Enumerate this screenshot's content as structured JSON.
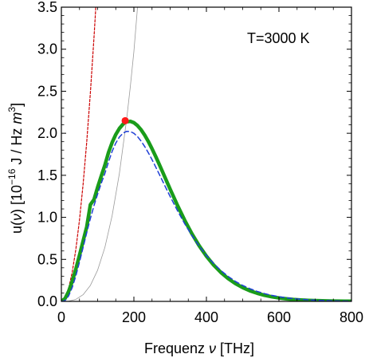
{
  "chart_data": {
    "type": "line",
    "title": "",
    "xlabel_parts": {
      "prefix": "Frequenz ",
      "symbol": "ν",
      "suffix": " [THz]"
    },
    "ylabel_parts": {
      "prefix": "u(",
      "symbol": "ν",
      "middle": ") [10",
      "exponent": "−16",
      "unit": " J / Hz ",
      "m": "m",
      "m_exp": "3",
      "close": "]"
    },
    "annotation": "T=3000 K",
    "xlim": [
      0,
      800
    ],
    "ylim": [
      0,
      3.5
    ],
    "xticks": [
      0,
      200,
      400,
      600,
      800
    ],
    "xtick_labels": [
      "0",
      "200",
      "400",
      "600",
      "800"
    ],
    "yticks": [
      0.0,
      0.5,
      1.0,
      1.5,
      2.0,
      2.5,
      3.0,
      3.5
    ],
    "ytick_labels": [
      "0.0",
      "0.5",
      "1.0",
      "1.5",
      "2.0",
      "2.5",
      "3.0",
      "3.5"
    ],
    "grid": false,
    "legend": "none",
    "series": [
      {
        "style": "solid-thick",
        "color": "#1a9c1a",
        "x": [
          0,
          10,
          20,
          30,
          40,
          50,
          60,
          70,
          80,
          90,
          100,
          110,
          120,
          130,
          140,
          150,
          160,
          170,
          176,
          180,
          190,
          200,
          210,
          220,
          230,
          240,
          250,
          260,
          270,
          280,
          290,
          300,
          320,
          340,
          360,
          380,
          400,
          420,
          440,
          460,
          480,
          500,
          520,
          540,
          560,
          580,
          600,
          620,
          640,
          660,
          680,
          700,
          720,
          740,
          760,
          780,
          800
        ],
        "y": [
          0,
          0.033,
          0.118,
          0.239,
          0.386,
          0.549,
          0.719,
          0.888,
          1.151,
          1.211,
          1.358,
          1.491,
          1.621,
          1.771,
          1.89,
          1.985,
          2.057,
          2.108,
          2.13,
          2.136,
          2.142,
          2.126,
          2.091,
          2.041,
          1.976,
          1.901,
          1.816,
          1.725,
          1.63,
          1.532,
          1.433,
          1.335,
          1.144,
          0.966,
          0.805,
          0.662,
          0.538,
          0.432,
          0.344,
          0.271,
          0.212,
          0.164,
          0.126,
          0.097,
          0.073,
          0.055,
          0.041,
          0.031,
          0.023,
          0.017,
          0.012,
          0.009,
          0.007,
          0.005,
          0.003,
          0.002,
          0.002
        ]
      },
      {
        "style": "dashed",
        "color": "#1f3fd6",
        "x": [
          0,
          10,
          20,
          30,
          40,
          50,
          60,
          70,
          80,
          90,
          100,
          110,
          120,
          130,
          140,
          150,
          160,
          170,
          180,
          190,
          200,
          210,
          220,
          230,
          240,
          250,
          260,
          270,
          280,
          290,
          300,
          320,
          340,
          360,
          380,
          400,
          420,
          440,
          460,
          480,
          500,
          520,
          540,
          560,
          580,
          600,
          620,
          640,
          660,
          680,
          700,
          720,
          740,
          760,
          780,
          800
        ],
        "y": [
          0,
          0.009,
          0.065,
          0.166,
          0.305,
          0.468,
          0.643,
          0.819,
          0.986,
          1.14,
          1.277,
          1.405,
          1.523,
          1.658,
          1.785,
          1.883,
          1.955,
          2.001,
          2.023,
          2.021,
          2.0,
          1.96,
          1.906,
          1.841,
          1.767,
          1.686,
          1.6,
          1.512,
          1.424,
          1.335,
          1.248,
          1.081,
          0.925,
          0.784,
          0.658,
          0.546,
          0.45,
          0.367,
          0.297,
          0.238,
          0.19,
          0.151,
          0.119,
          0.093,
          0.072,
          0.056,
          0.043,
          0.033,
          0.025,
          0.019,
          0.014,
          0.011,
          0.008,
          0.006,
          0.004,
          0.003
        ]
      },
      {
        "style": "dashed-red",
        "color": "#cc0000",
        "x": [
          0,
          10,
          20,
          30,
          40,
          50,
          60,
          70,
          80,
          90,
          95
        ],
        "y": [
          0,
          0.039,
          0.155,
          0.349,
          0.621,
          0.97,
          1.396,
          1.9,
          2.482,
          3.142,
          3.5
        ]
      },
      {
        "style": "thin",
        "color": "#9a9a9a",
        "x": [
          0,
          20,
          40,
          60,
          80,
          100,
          120,
          140,
          160,
          180,
          190,
          200,
          210
        ],
        "y": [
          0,
          0.003,
          0.024,
          0.08,
          0.19,
          0.372,
          0.642,
          1.02,
          1.522,
          2.167,
          2.549,
          2.973,
          3.5
        ]
      }
    ],
    "peak_marker": {
      "x": 176,
      "y": 2.15,
      "color": "#ff1a1a"
    }
  }
}
